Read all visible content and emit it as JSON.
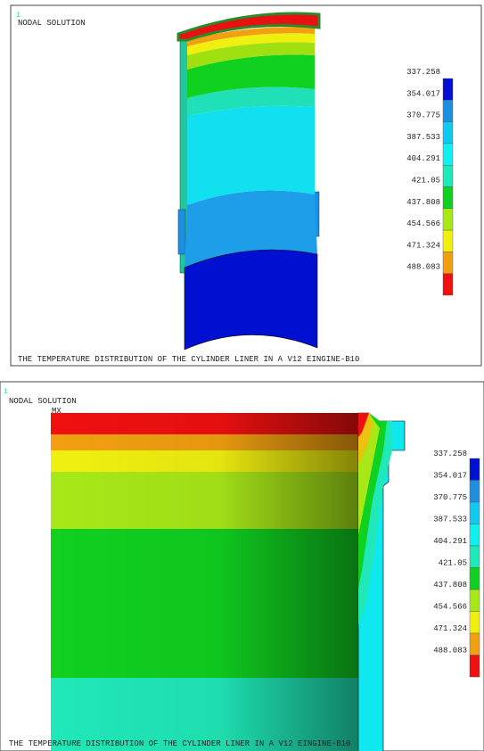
{
  "panels": [
    {
      "window_id": "1",
      "title": "NODAL SOLUTION",
      "caption": "THE TEMPERATURE DISTRIBUTION OF THE CYLINDER LINER IN A V12 EINGINE-B10",
      "legend": [
        337.258,
        354.017,
        370.775,
        387.533,
        404.291,
        421.05,
        437.808,
        454.566,
        471.324,
        488.083
      ]
    },
    {
      "window_id": "1",
      "title": "NODAL SOLUTION",
      "marker": "MX",
      "caption": "THE TEMPERATURE DISTRIBUTION OF THE CYLINDER LINER IN A V12 EINGINE-B10",
      "legend": [
        337.258,
        354.017,
        370.775,
        387.533,
        404.291,
        421.05,
        437.808,
        454.566,
        471.324,
        488.083
      ]
    }
  ]
}
